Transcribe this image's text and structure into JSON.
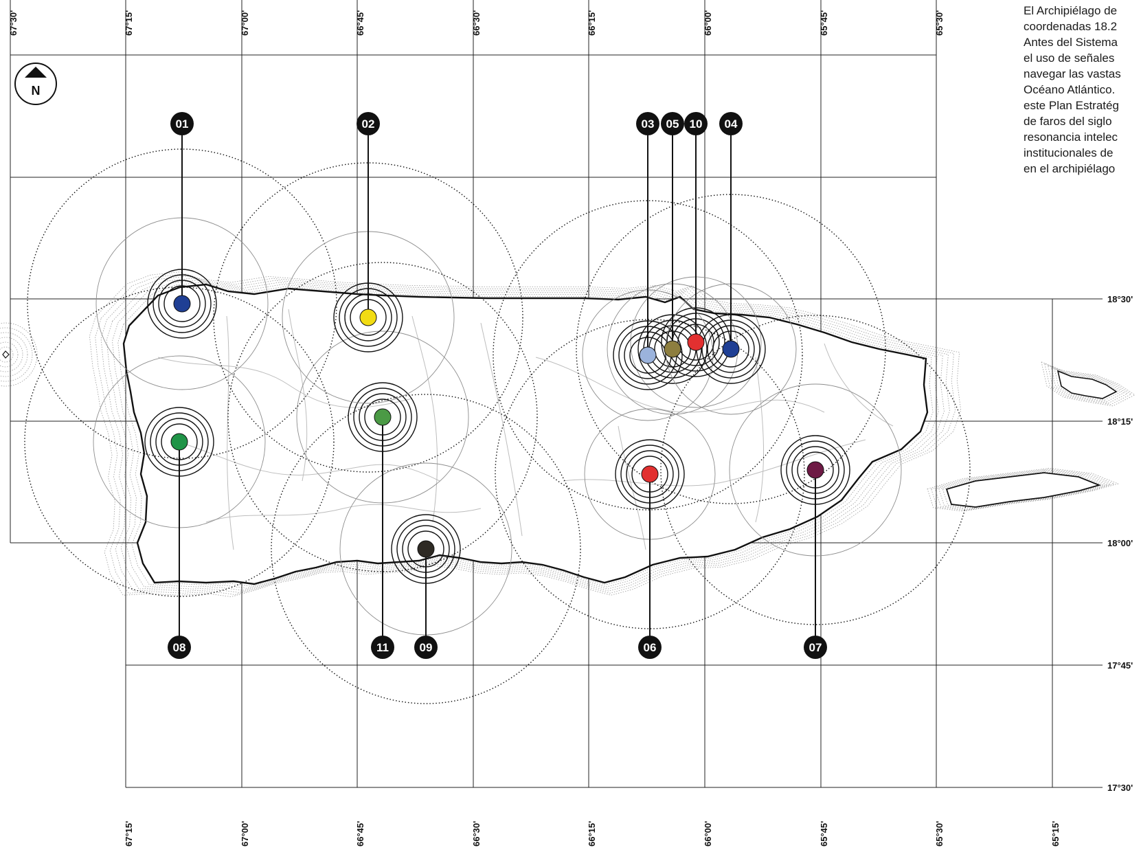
{
  "intro_text": "El Archipiélago de\ncoordenadas 18.2\nAntes del Sistema\nel uso de señales\nnavegar las vastas\nOcéano Atlántico.\neste Plan Estratég\nde faros del siglo\nresonancia intelec\ninstitucionales de\nen el archipiélago",
  "compass": {
    "label": "N"
  },
  "longitude_labels": [
    "67°30'",
    "67°15'",
    "67°00'",
    "66°45'",
    "66°30'",
    "66°15'",
    "66°00'",
    "65°45'",
    "65°30'",
    "65°15'"
  ],
  "latitude_labels": [
    "18°30'",
    "18°15'",
    "18°00'",
    "17°45'",
    "17°30'"
  ],
  "lighthouses": [
    {
      "id": "01",
      "color": "#1f3f94"
    },
    {
      "id": "02",
      "color": "#f2dc13"
    },
    {
      "id": "03",
      "color": "#9bb3dc"
    },
    {
      "id": "04",
      "color": "#1f3f94"
    },
    {
      "id": "05",
      "color": "#8d7e3f"
    },
    {
      "id": "06",
      "color": "#e23030"
    },
    {
      "id": "07",
      "color": "#6e1a45"
    },
    {
      "id": "08",
      "color": "#1f9447"
    },
    {
      "id": "09",
      "color": "#2e2a24"
    },
    {
      "id": "10",
      "color": "#e23030"
    },
    {
      "id": "11",
      "color": "#4b9a45"
    }
  ],
  "colors": {
    "ink": "#111111",
    "grid": "#222222",
    "roads": "#bdbdbd",
    "bathymetry": "#9a9a9a"
  }
}
